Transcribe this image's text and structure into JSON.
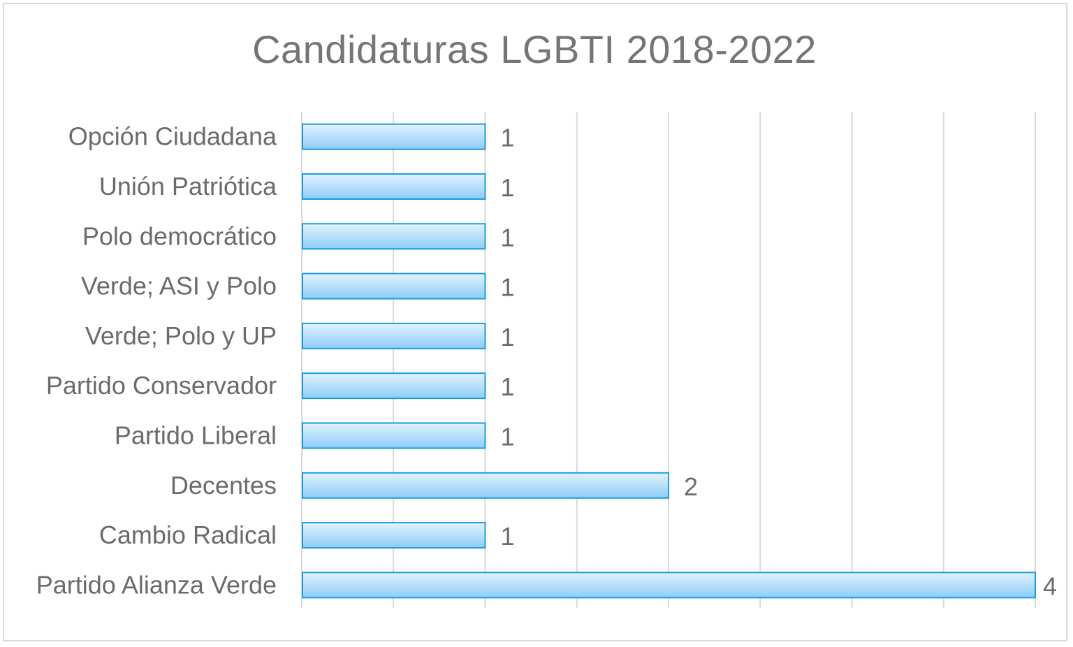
{
  "chart_data": {
    "type": "bar",
    "orientation": "horizontal",
    "title": "Candidaturas LGBTI 2018-2022",
    "categories": [
      "Opción Ciudadana",
      "Unión Patriótica",
      "Polo democrático",
      "Verde; ASI y Polo",
      "Verde; Polo y UP",
      "Partido Conservador",
      "Partido Liberal",
      "Decentes",
      "Cambio Radical",
      "Partido Alianza Verde"
    ],
    "values": [
      1,
      1,
      1,
      1,
      1,
      1,
      1,
      2,
      1,
      4
    ],
    "data_labels": [
      "1",
      "1",
      "1",
      "1",
      "1",
      "1",
      "1",
      "2",
      "1",
      "4"
    ],
    "xlabel": "",
    "ylabel": "",
    "xlim": [
      0,
      4
    ],
    "grid": true,
    "legend": "none",
    "colors": {
      "bar_fill_top": "#e3f2ff",
      "bar_fill_bottom": "#8ccdf7",
      "bar_stroke": "#1b9be3",
      "grid": "#d9d9d9",
      "text": "#6b6b6b",
      "title": "#757575"
    }
  }
}
